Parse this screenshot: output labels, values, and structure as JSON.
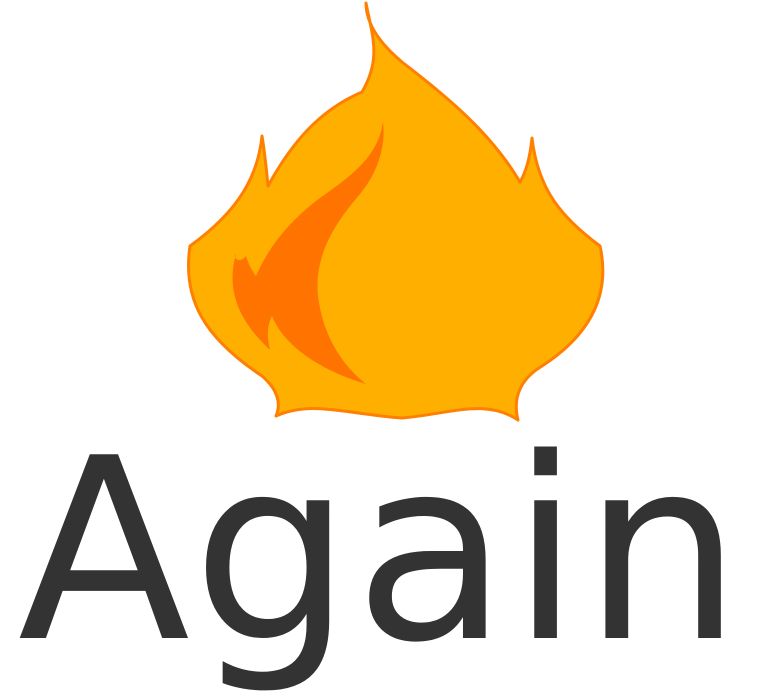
{
  "brand": {
    "wordmark": "Again",
    "icon": "flame-icon",
    "colors": {
      "flame_outer": "#FFAF00",
      "flame_outline": "#FF7F00",
      "flame_inner": "#FF7300",
      "text": "#333333",
      "background": "#FFFFFF"
    }
  }
}
